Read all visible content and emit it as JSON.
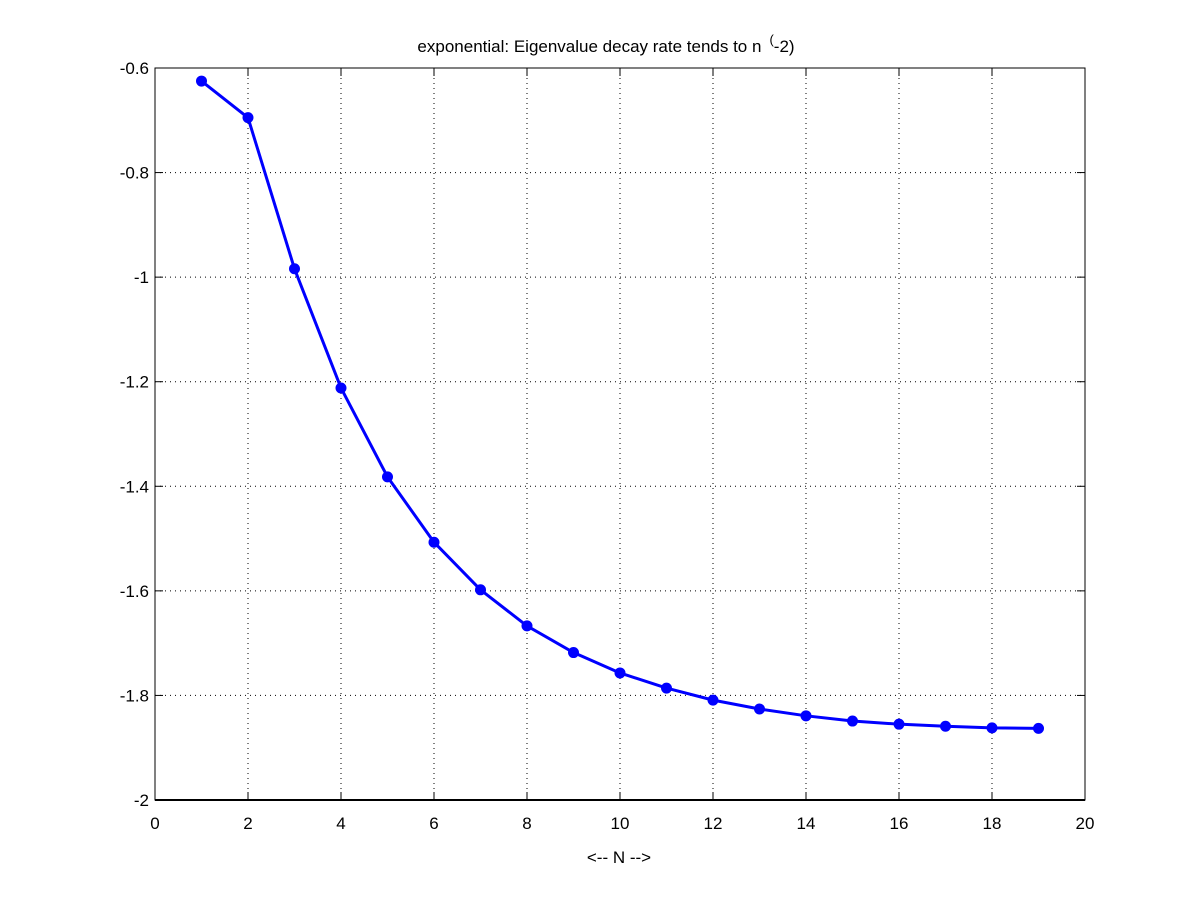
{
  "chart_data": {
    "type": "line",
    "title": "exponential: Eigenvalue decay rate tends to n",
    "title_superscript": "(",
    "title_suffix": "-2)",
    "xlabel": "<-- N -->",
    "ylabel": "",
    "xlim": [
      0,
      20
    ],
    "ylim": [
      -2,
      -0.6
    ],
    "xticks": [
      0,
      2,
      4,
      6,
      8,
      10,
      12,
      14,
      16,
      18,
      20
    ],
    "yticks": [
      -2,
      -1.8,
      -1.6,
      -1.4,
      -1.2,
      -1,
      -0.8,
      -0.6
    ],
    "grid": true,
    "legend": "none",
    "series": [
      {
        "color": "#0000ff",
        "marker": "circle",
        "x": [
          1,
          2,
          3,
          4,
          5,
          6,
          7,
          8,
          9,
          10,
          11,
          12,
          13,
          14,
          15,
          16,
          17,
          18,
          19
        ],
        "values": [
          -0.625,
          -0.695,
          -0.984,
          -1.212,
          -1.382,
          -1.507,
          -1.598,
          -1.667,
          -1.718,
          -1.757,
          -1.786,
          -1.809,
          -1.826,
          -1.839,
          -1.849,
          -1.855,
          -1.859,
          -1.862,
          -1.863
        ]
      }
    ]
  }
}
